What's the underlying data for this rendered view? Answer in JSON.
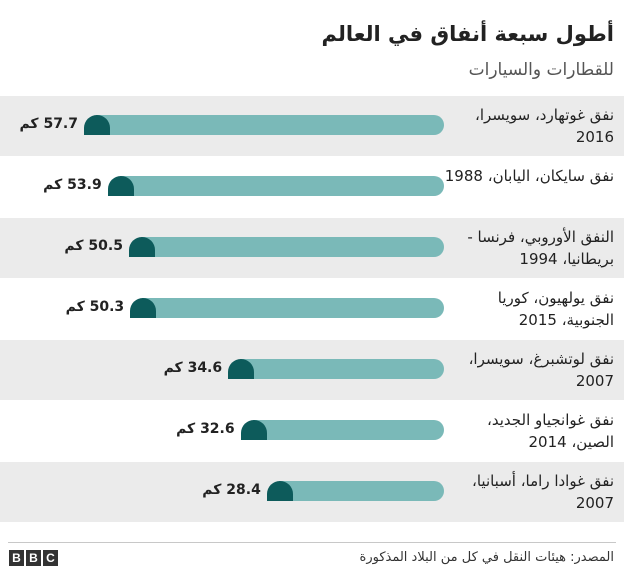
{
  "chart_data": {
    "type": "bar",
    "title": "أطول سبعة أنفاق في العالم",
    "subtitle": "للقطارات والسيارات",
    "unit": "كم",
    "categories": [
      "نفق غوتهارد، سويسرا، 2016",
      "نفق سايكان، اليابان، 1988",
      "النفق الأوروبي، فرنسا - بريطانيا، 1994",
      "نفق يولهيون، كوريا الجنوبية، 2015",
      "نفق لوتشبرغ، سويسرا، 2007",
      "نفق غوانجياو الجديد، الصين، 2014",
      "نفق غوادا راما، أسبانيا، 2007"
    ],
    "values": [
      57.7,
      53.9,
      50.5,
      50.3,
      34.6,
      32.6,
      28.4
    ],
    "value_labels": [
      "57.7 كم",
      "53.9 كم",
      "50.5 كم",
      "50.3 كم",
      "34.6 كم",
      "32.6 كم",
      "28.4 كم"
    ],
    "colors": {
      "track": "#7ab9b8",
      "portal": "#0d5b5b",
      "row_shade": "#ebebeb"
    }
  },
  "footer": {
    "source": "المصدر: هيئات النقل في كل من البلاد المذكورة",
    "logo": [
      "B",
      "B",
      "C"
    ]
  }
}
